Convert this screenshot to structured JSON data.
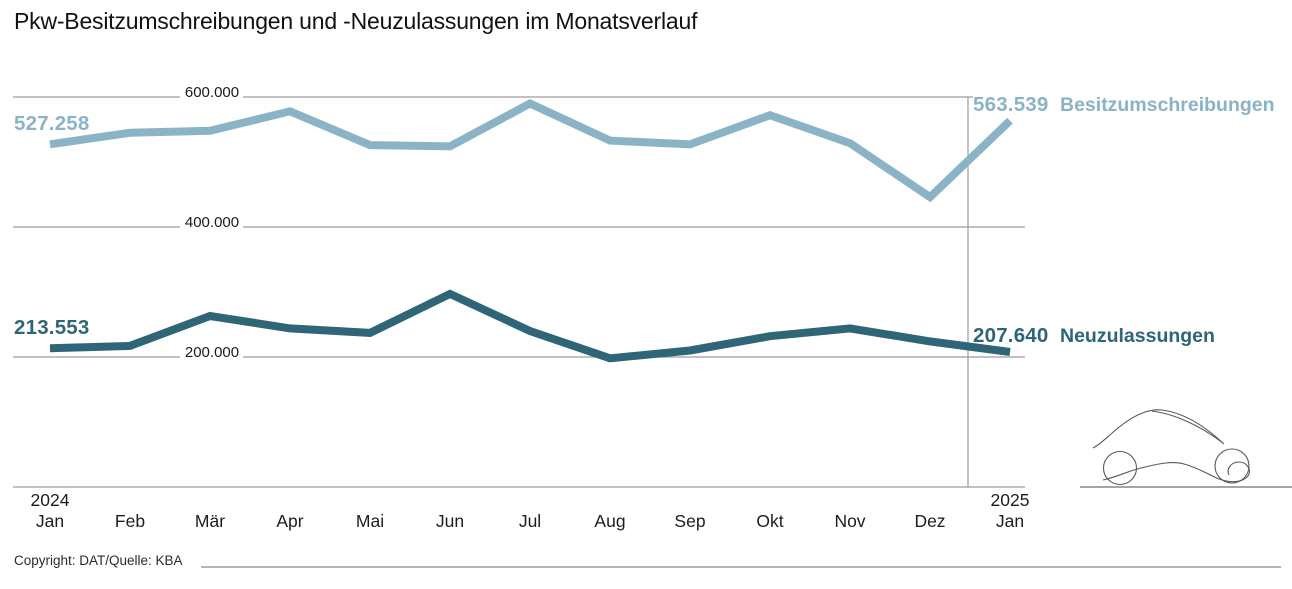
{
  "title": "Pkw-Besitzumschreibungen und -Neuzulassungen im Monatsverlauf",
  "footer": {
    "copyright": "Copyright: DAT/Quelle: KBA"
  },
  "icons": {
    "car_icon": "car-sketch-icon"
  },
  "colors": {
    "series_besitzumschreibungen": "#8ab4c5",
    "series_neuzulassungen": "#2e6577",
    "gridline": "#9c9c9c",
    "text": "#1a1a1a"
  },
  "chart_data": {
    "type": "line",
    "title": "Pkw-Besitzumschreibungen und -Neuzulassungen im Monatsverlauf",
    "categories": [
      "Jan",
      "Feb",
      "Mär",
      "Apr",
      "Mai",
      "Jun",
      "Jul",
      "Aug",
      "Sep",
      "Okt",
      "Nov",
      "Dez",
      "Jan"
    ],
    "start_year_label": "2024",
    "end_year_label": "2025",
    "y_ticks": [
      {
        "label": "600.000",
        "value": 600000
      },
      {
        "label": "400.000",
        "value": 400000
      },
      {
        "label": "200.000",
        "value": 200000
      }
    ],
    "ylim": [
      150000,
      630000
    ],
    "grid": "horizontal",
    "year_separator_after_index": 11,
    "series": [
      {
        "name": "Besitzumschreibungen",
        "color": "#8ab4c5",
        "values": [
          527258,
          545000,
          548000,
          578000,
          526000,
          524000,
          590000,
          533000,
          527000,
          572000,
          529000,
          446000,
          563539
        ],
        "start_label": "527.258",
        "end_label": "563.539"
      },
      {
        "name": "Neuzulassungen",
        "color": "#2e6577",
        "values": [
          213553,
          217000,
          263000,
          244000,
          237000,
          297000,
          240000,
          198000,
          210000,
          232000,
          244000,
          224000,
          207640
        ],
        "start_label": "213.553",
        "end_label": "207.640"
      }
    ],
    "legend_position": "right-of-line-end"
  }
}
